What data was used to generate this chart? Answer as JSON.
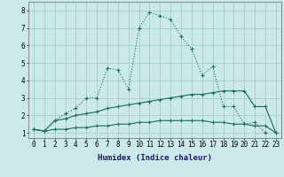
{
  "xlabel": "Humidex (Indice chaleur)",
  "background_color": "#cce9e9",
  "grid_color": "#a8cccc",
  "line_color": "#1a6b5a",
  "series1_x": [
    0,
    1,
    2,
    3,
    4,
    5,
    6,
    7,
    8,
    9,
    10,
    11,
    12,
    13,
    14,
    15,
    16,
    17,
    18,
    19,
    20,
    21,
    22
  ],
  "series1_y": [
    1.2,
    1.1,
    1.7,
    2.1,
    2.4,
    3.0,
    3.0,
    4.7,
    4.6,
    3.5,
    7.0,
    7.9,
    7.7,
    7.5,
    6.5,
    5.8,
    4.3,
    4.8,
    2.5,
    2.5,
    1.5,
    1.6,
    1.0
  ],
  "series2_x": [
    0,
    1,
    2,
    3,
    4,
    5,
    6,
    7,
    8,
    9,
    10,
    11,
    12,
    13,
    14,
    15,
    16,
    17,
    18,
    19,
    20,
    21,
    22,
    23
  ],
  "series2_y": [
    1.2,
    1.1,
    1.7,
    1.8,
    2.0,
    2.1,
    2.2,
    2.4,
    2.5,
    2.6,
    2.7,
    2.8,
    2.9,
    3.0,
    3.1,
    3.2,
    3.2,
    3.3,
    3.4,
    3.4,
    3.4,
    2.5,
    2.5,
    1.0
  ],
  "series3_x": [
    0,
    1,
    2,
    3,
    4,
    5,
    6,
    7,
    8,
    9,
    10,
    11,
    12,
    13,
    14,
    15,
    16,
    17,
    18,
    19,
    20,
    21,
    22,
    23
  ],
  "series3_y": [
    1.2,
    1.1,
    1.2,
    1.2,
    1.3,
    1.3,
    1.4,
    1.4,
    1.5,
    1.5,
    1.6,
    1.6,
    1.7,
    1.7,
    1.7,
    1.7,
    1.7,
    1.6,
    1.6,
    1.5,
    1.5,
    1.4,
    1.4,
    1.0
  ],
  "ylim": [
    0.7,
    8.5
  ],
  "yticks": [
    1,
    2,
    3,
    4,
    5,
    6,
    7,
    8
  ],
  "xlabel_color": "#1a1a6a",
  "xlabel_fontsize": 6.5,
  "tick_fontsize": 5.5
}
